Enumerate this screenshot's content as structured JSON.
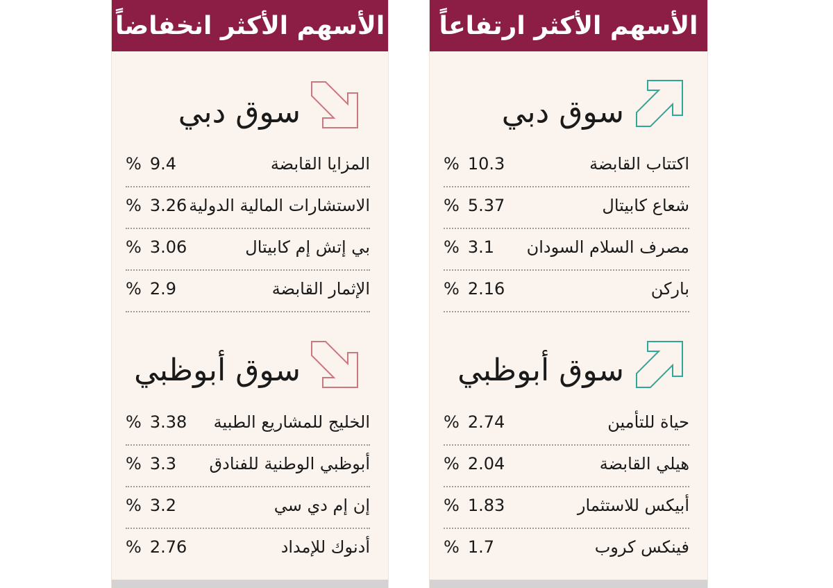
{
  "gainers": {
    "header": "الأسهم الأكثر ارتفاعاً",
    "dubai": {
      "title": "سوق دبي",
      "rows": [
        {
          "name": "اكتتاب القابضة",
          "value": "10.3"
        },
        {
          "name": "شعاع كابيتال",
          "value": "5.37"
        },
        {
          "name": "مصرف السلام السودان",
          "value": "3.1"
        },
        {
          "name": "باركن",
          "value": "2.16"
        }
      ]
    },
    "abudhabi": {
      "title": "سوق أبوظبي",
      "rows": [
        {
          "name": "حياة للتأمين",
          "value": "2.74"
        },
        {
          "name": "هيلي القابضة",
          "value": "2.04"
        },
        {
          "name": "أبيكس للاستثمار",
          "value": "1.83"
        },
        {
          "name": "فينكس كروب",
          "value": "1.7"
        }
      ]
    }
  },
  "losers": {
    "header": "الأسهم الأكثر انخفاضاً",
    "dubai": {
      "title": "سوق دبي",
      "rows": [
        {
          "name": "المزايا القابضة",
          "value": "9.4"
        },
        {
          "name": "الاستشارات المالية الدولية",
          "value": "3.26"
        },
        {
          "name": "بي إتش إم كابيتال",
          "value": "3.06"
        },
        {
          "name": "الإثمار القابضة",
          "value": "2.9"
        }
      ]
    },
    "abudhabi": {
      "title": "سوق أبوظبي",
      "rows": [
        {
          "name": "الخليج للمشاريع الطبية",
          "value": "3.38"
        },
        {
          "name": "أبوظبي الوطنية للفنادق",
          "value": "3.3"
        },
        {
          "name": "إن إم دي سي",
          "value": "3.2"
        },
        {
          "name": "أدنوك للإمداد",
          "value": "2.76"
        }
      ]
    }
  },
  "percent_sign": "%",
  "colors": {
    "header_bg": "#8c1e45",
    "panel_bg": "#fbf3ee",
    "up_arrow": "#2fa89a",
    "down_arrow": "#c9787f"
  },
  "icons": {
    "up": "arrow-up-right-icon",
    "down": "arrow-down-right-icon"
  }
}
